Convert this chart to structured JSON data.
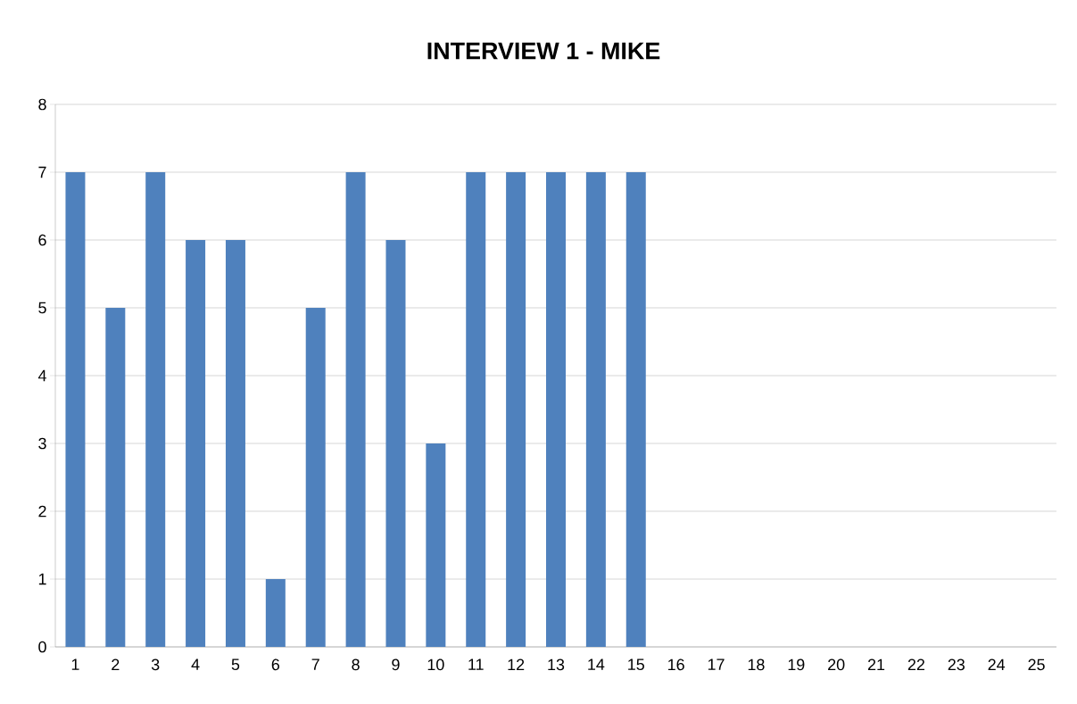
{
  "chart_data": {
    "type": "bar",
    "title": "INTERVIEW 1 - MIKE",
    "categories": [
      "1",
      "2",
      "3",
      "4",
      "5",
      "6",
      "7",
      "8",
      "9",
      "10",
      "11",
      "12",
      "13",
      "14",
      "15",
      "16",
      "17",
      "18",
      "19",
      "20",
      "21",
      "22",
      "23",
      "24",
      "25"
    ],
    "values": [
      7,
      5,
      7,
      6,
      6,
      1,
      5,
      7,
      6,
      3,
      7,
      7,
      7,
      7,
      7,
      null,
      null,
      null,
      null,
      null,
      null,
      null,
      null,
      null,
      null
    ],
    "color": "#4f81bd",
    "ylim": [
      0,
      8
    ],
    "yticks": [
      0,
      1,
      2,
      3,
      4,
      5,
      6,
      7,
      8
    ],
    "grid": "y"
  }
}
